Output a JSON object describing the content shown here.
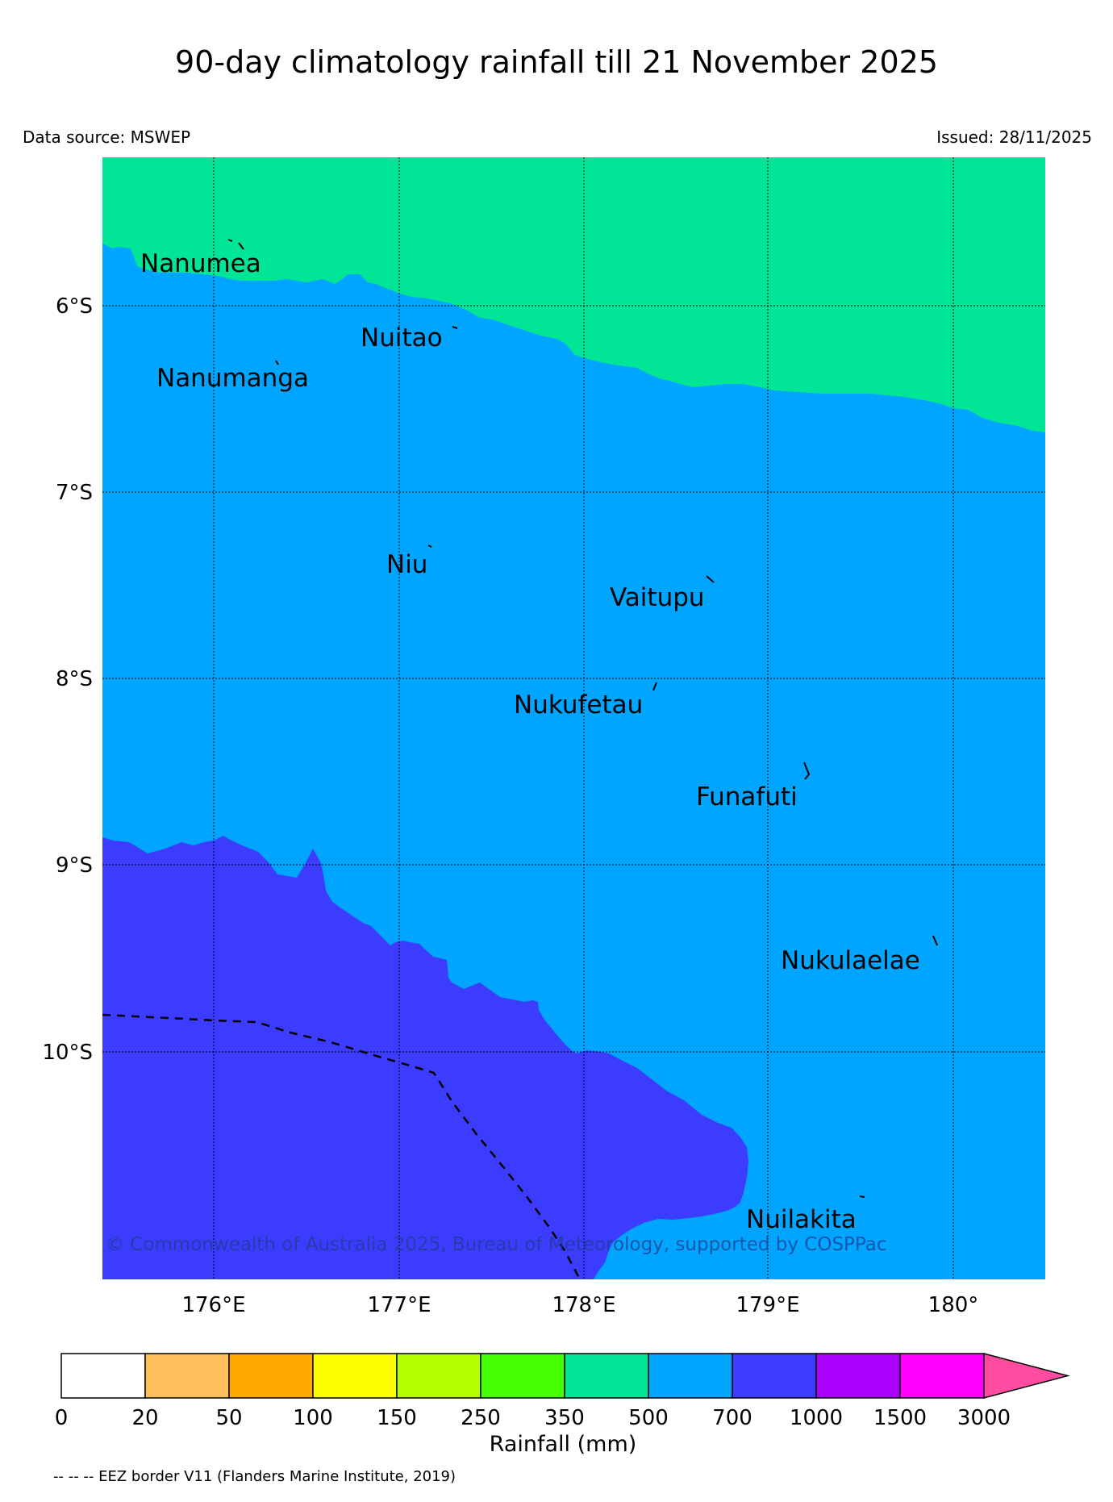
{
  "title": "90-day climatology rainfall till 21 November 2025",
  "data_source": "Data source: MSWEP",
  "issued": "Issued: 28/11/2025",
  "copyright": "© Commonwealth of Australia 2025, Bureau of Meteorology, supported by COSPPac",
  "axes": {
    "lon_ticks": [
      "176°E",
      "177°E",
      "178°E",
      "179°E",
      "180°"
    ],
    "lat_ticks": [
      "6°S",
      "7°S",
      "8°S",
      "9°S",
      "10°S"
    ]
  },
  "islands": [
    {
      "name": "Nanumea"
    },
    {
      "name": "Nuitao"
    },
    {
      "name": "Nanumanga"
    },
    {
      "name": "Niu"
    },
    {
      "name": "Vaitupu"
    },
    {
      "name": "Nukufetau"
    },
    {
      "name": "Funafuti"
    },
    {
      "name": "Nukulaelae"
    },
    {
      "name": "Nuilakita"
    }
  ],
  "colorbar": {
    "title": "Rainfall (mm)",
    "labels": [
      "0",
      "20",
      "50",
      "100",
      "150",
      "250",
      "350",
      "500",
      "700",
      "1000",
      "1500",
      "3000"
    ],
    "colors": [
      "#ffffff",
      "#ffbf5a",
      "#ffa800",
      "#ffff00",
      "#b4ff00",
      "#46ff00",
      "#00e696",
      "#00a5ff",
      "#3c3cff",
      "#aa00ff",
      "#ff00ff",
      "#ff4ba0"
    ]
  },
  "map_colors": {
    "band_350_500": "#00e696",
    "band_500_700": "#00a5ff",
    "band_700_1000": "#3c3cff"
  },
  "eez_note": "-- -- -- EEZ border V11 (Flanders Marine Institute, 2019)"
}
